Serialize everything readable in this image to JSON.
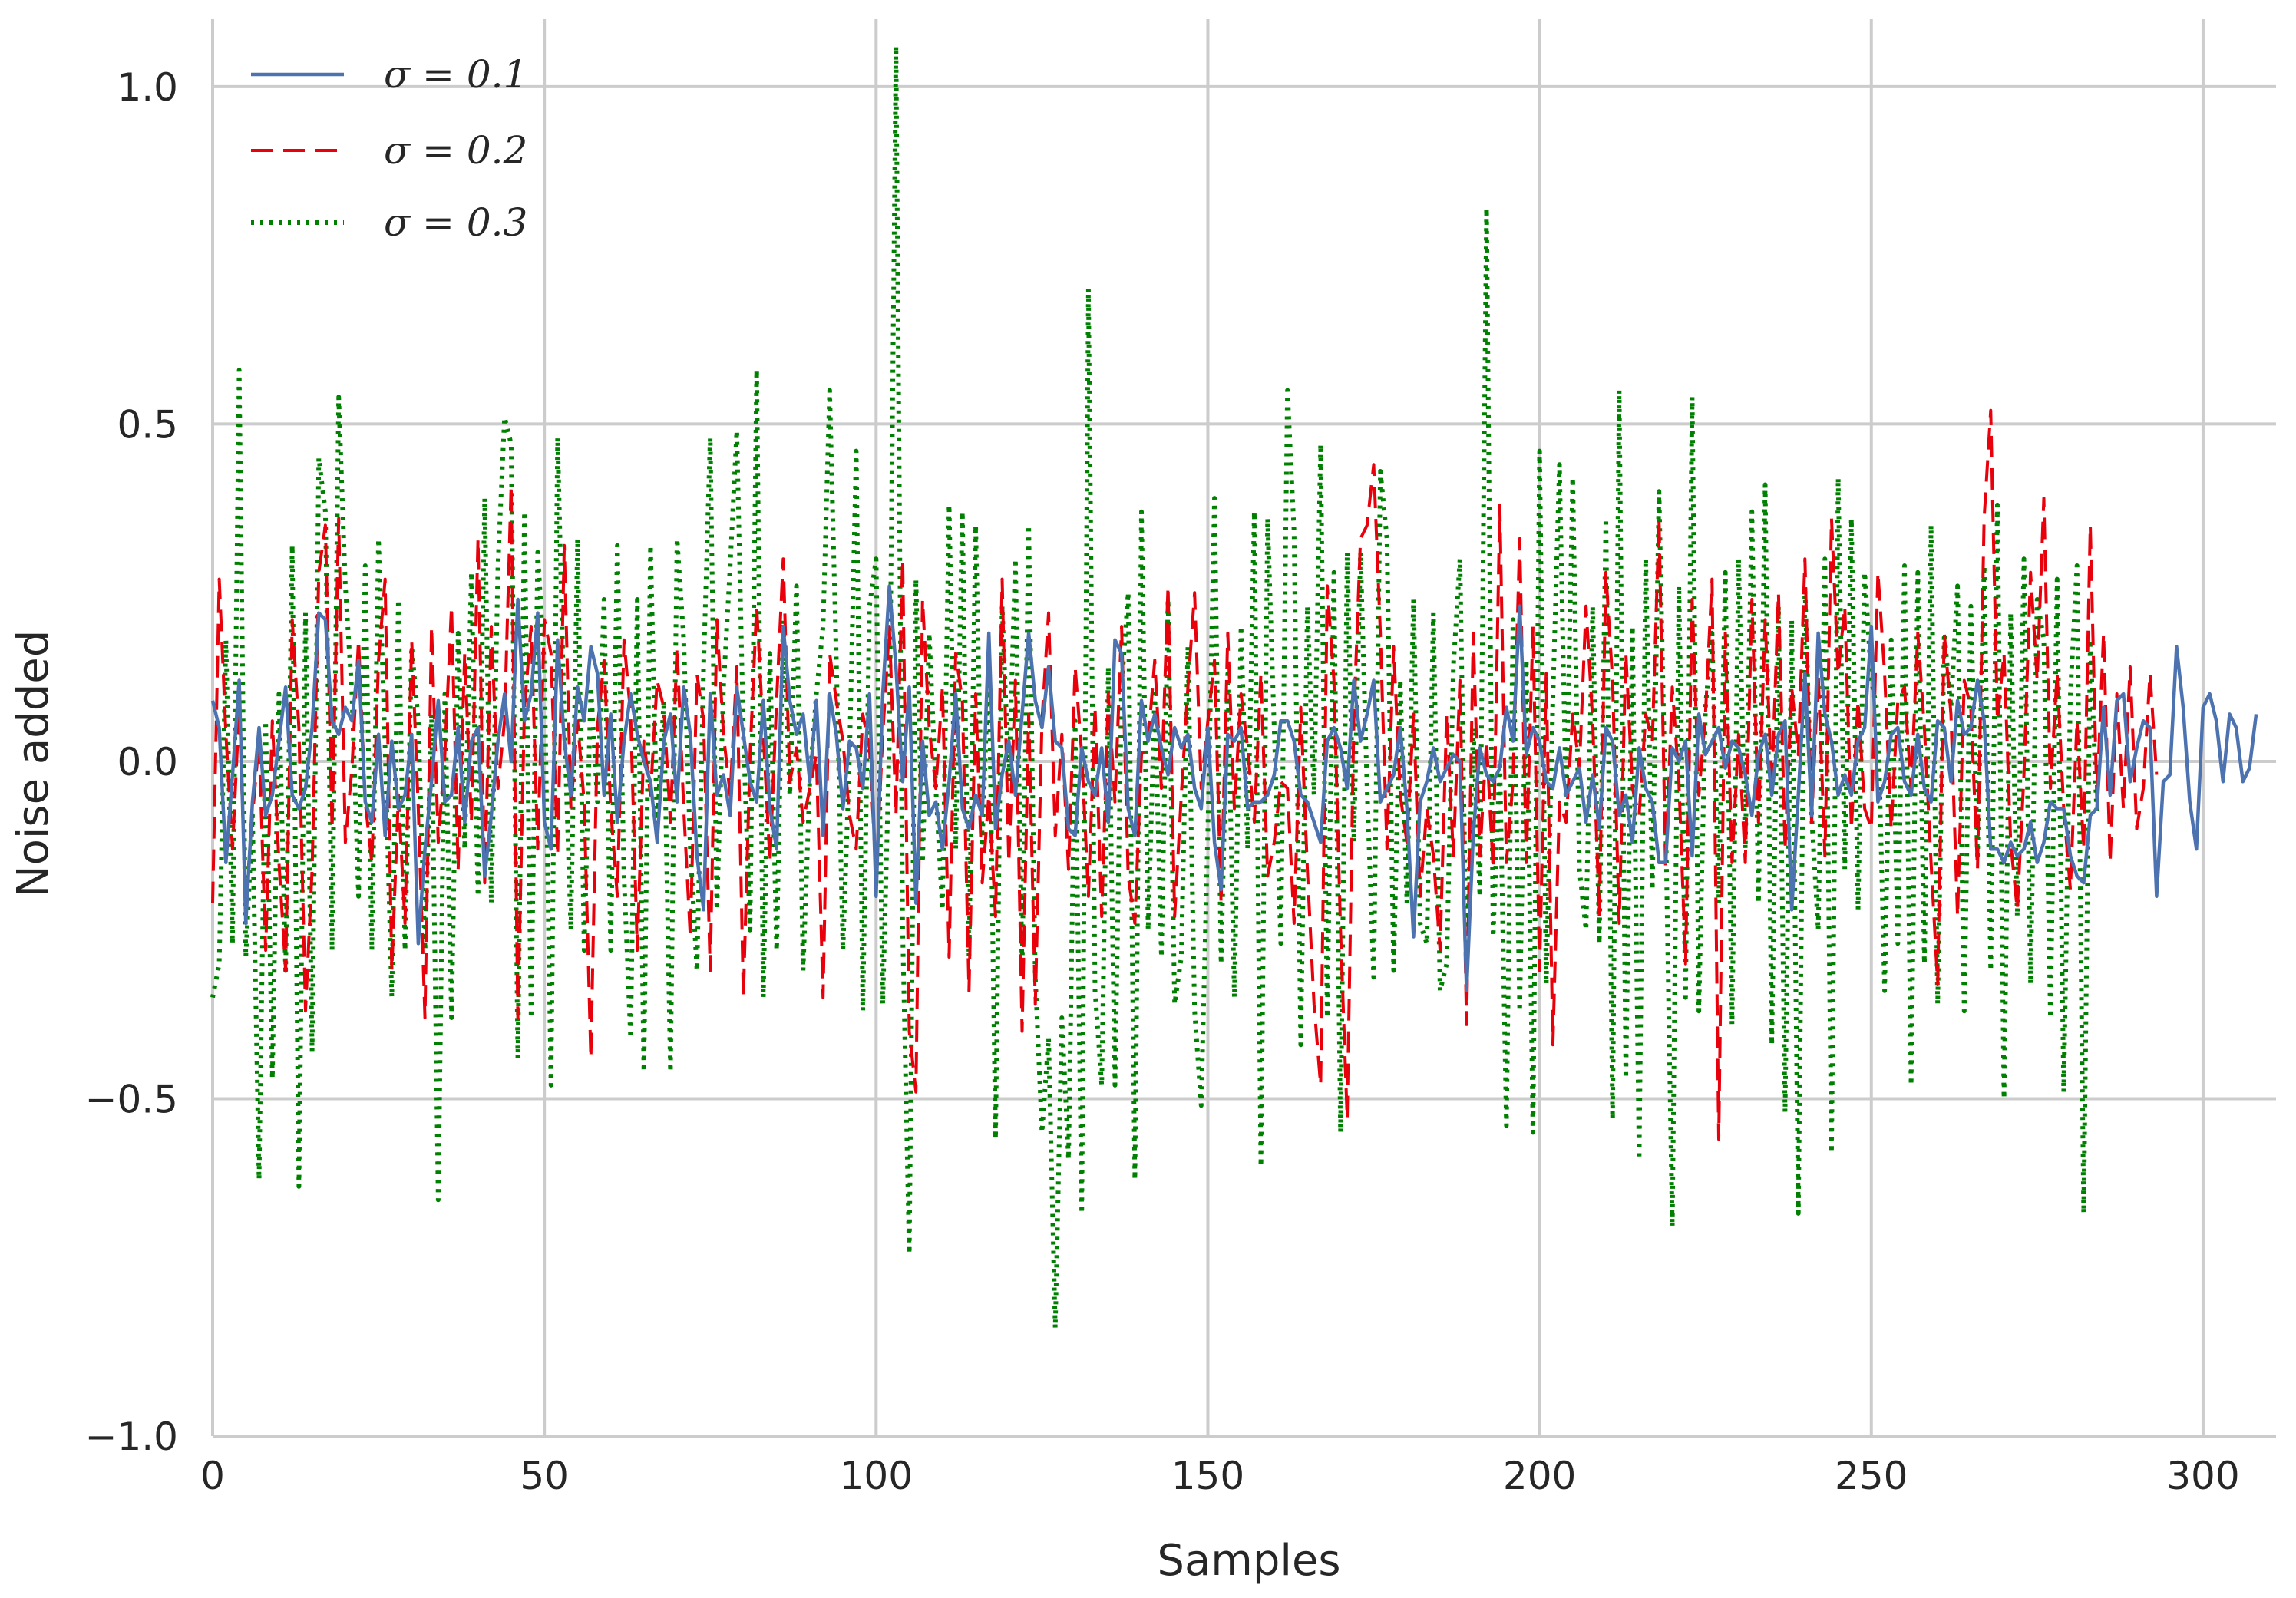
{
  "chart_data": {
    "type": "line",
    "title": "",
    "xlabel": "Samples",
    "ylabel": "Noise added",
    "xlim": [
      0,
      311
    ],
    "ylim": [
      -1.0,
      1.1
    ],
    "xticks": [
      0,
      50,
      100,
      150,
      200,
      250,
      300
    ],
    "xtick_labels": [
      "0",
      "50",
      "100",
      "150",
      "200",
      "250",
      "300"
    ],
    "yticks": [
      -1.0,
      -0.5,
      0.0,
      0.5,
      1.0
    ],
    "ytick_labels": [
      "−1.0",
      "−0.5",
      "0.0",
      "0.5",
      "1.0"
    ],
    "grid": true,
    "legend_position": "top-left",
    "series": [
      {
        "name": "σ = 0.1",
        "color": "#4c72b0",
        "style": "solid",
        "values": [
          0.09,
          0.05,
          -0.15,
          -0.02,
          0.12,
          -0.24,
          -0.06,
          0.05,
          -0.08,
          -0.05,
          0.03,
          0.11,
          -0.05,
          -0.07,
          -0.04,
          0.05,
          0.22,
          0.21,
          0.06,
          0.04,
          0.08,
          0.06,
          0.15,
          -0.06,
          -0.09,
          0.04,
          -0.11,
          0.03,
          -0.07,
          -0.05,
          0.04,
          -0.27,
          -0.13,
          -0.03,
          0.09,
          -0.06,
          -0.05,
          0.05,
          -0.09,
          0.03,
          0.05,
          -0.17,
          -0.08,
          0.03,
          0.1,
          0.0,
          0.24,
          0.06,
          0.1,
          0.22,
          -0.09,
          -0.13,
          0.18,
          0.03,
          -0.05,
          0.11,
          0.06,
          0.17,
          0.13,
          -0.05,
          0.07,
          -0.09,
          0.03,
          0.1,
          0.04,
          0.0,
          -0.03,
          -0.12,
          0.03,
          0.07,
          -0.06,
          0.11,
          0.04,
          -0.14,
          -0.22,
          0.1,
          -0.05,
          -0.02,
          -0.08,
          0.11,
          0.04,
          -0.03,
          -0.06,
          0.09,
          -0.07,
          -0.13,
          0.2,
          0.09,
          0.04,
          0.07,
          -0.03,
          0.09,
          -0.11,
          0.1,
          0.04,
          -0.07,
          0.03,
          0.02,
          -0.04,
          0.1,
          -0.2,
          0.1,
          0.26,
          0.14,
          -0.03,
          0.11,
          -0.21,
          0.03,
          -0.08,
          -0.06,
          -0.13,
          -0.03,
          0.1,
          -0.07,
          -0.1,
          -0.05,
          -0.08,
          0.19,
          -0.1,
          -0.02,
          0.03,
          -0.05,
          0.07,
          0.19,
          0.09,
          0.05,
          0.14,
          0.03,
          0.02,
          -0.1,
          -0.11,
          0.02,
          -0.03,
          -0.05,
          0.02,
          -0.09,
          0.18,
          0.16,
          -0.07,
          -0.11,
          0.09,
          0.03,
          0.07,
          0.02,
          -0.02,
          0.05,
          0.02,
          0.04,
          -0.04,
          -0.07,
          0.05,
          -0.12,
          -0.19,
          0.04,
          0.03,
          0.05,
          -0.07,
          -0.06,
          -0.06,
          -0.05,
          -0.02,
          0.06,
          0.06,
          0.03,
          -0.05,
          -0.06,
          -0.09,
          -0.12,
          0.03,
          0.05,
          0.02,
          -0.04,
          0.12,
          0.03,
          0.07,
          0.12,
          -0.06,
          -0.04,
          -0.02,
          0.05,
          -0.07,
          -0.26,
          -0.06,
          -0.03,
          0.02,
          -0.03,
          -0.01,
          0.01,
          0.0,
          -0.34,
          -0.11,
          0.02,
          -0.02,
          -0.03,
          -0.01,
          0.08,
          0.03,
          0.23,
          0.01,
          0.05,
          0.03,
          -0.03,
          -0.04,
          0.02,
          -0.05,
          -0.03,
          -0.01,
          -0.09,
          -0.02,
          -0.1,
          0.05,
          0.03,
          -0.08,
          -0.05,
          -0.12,
          0.02,
          -0.04,
          -0.06,
          -0.15,
          -0.15,
          0.02,
          0.0,
          0.03,
          -0.14,
          0.07,
          0.01,
          0.03,
          0.05,
          -0.01,
          0.03,
          0.02,
          -0.02,
          -0.08,
          0.01,
          0.04,
          -0.05,
          0.04,
          0.06,
          -0.22,
          -0.05,
          0.13,
          -0.08,
          0.19,
          0.07,
          0.03,
          -0.05,
          -0.02,
          -0.05,
          0.03,
          0.05,
          0.2,
          -0.06,
          -0.03,
          0.04,
          0.05,
          -0.03,
          -0.05,
          0.04,
          -0.04,
          -0.06,
          0.06,
          0.05,
          -0.03,
          0.09,
          0.04,
          0.05,
          0.12,
          0.06,
          -0.13,
          -0.13,
          -0.15,
          -0.12,
          -0.14,
          -0.13,
          -0.09,
          -0.15,
          -0.12,
          -0.06,
          -0.07,
          -0.07,
          -0.14,
          -0.17,
          -0.18,
          -0.08,
          -0.07,
          0.08,
          -0.05,
          0.09,
          0.1,
          -0.03,
          0.02,
          0.06,
          0.05,
          -0.2,
          -0.03,
          -0.02,
          0.17,
          0.08,
          -0.06,
          -0.13,
          0.08,
          0.1,
          0.06,
          -0.03,
          0.07,
          0.05,
          -0.03,
          -0.01,
          0.07
        ]
      },
      {
        "name": "σ = 0.2",
        "color": "#e8000b",
        "style": "dashed",
        "values": [
          -0.21,
          0.27,
          0.04,
          -0.13,
          0.08,
          -0.21,
          -0.08,
          0.03,
          -0.28,
          0.06,
          -0.15,
          -0.31,
          0.21,
          0.05,
          -0.37,
          -0.16,
          0.28,
          0.35,
          -0.1,
          0.36,
          -0.12,
          -0.01,
          0.18,
          -0.06,
          -0.15,
          0.15,
          0.27,
          -0.31,
          -0.05,
          -0.24,
          0.18,
          -0.07,
          -0.38,
          0.2,
          -0.12,
          0.01,
          0.23,
          -0.16,
          0.16,
          -0.09,
          0.33,
          -0.18,
          0.2,
          -0.04,
          0.06,
          0.41,
          -0.38,
          0.08,
          0.2,
          -0.13,
          0.21,
          0.16,
          -0.14,
          0.32,
          -0.07,
          0.06,
          -0.06,
          -0.44,
          0.05,
          0.15,
          -0.07,
          -0.2,
          0.18,
          0.07,
          -0.28,
          0.03,
          -0.05,
          0.12,
          0.08,
          -0.09,
          0.17,
          -0.07,
          -0.26,
          0.13,
          0.06,
          -0.31,
          0.21,
          0.04,
          -0.05,
          0.14,
          -0.35,
          0.01,
          0.23,
          0.04,
          -0.15,
          0.09,
          0.3,
          -0.03,
          0.02,
          -0.09,
          -0.04,
          0.01,
          -0.35,
          0.16,
          0.09,
          0.03,
          -0.08,
          -0.13,
          0.07,
          0.02,
          -0.17,
          0.04,
          0.2,
          -0.08,
          0.3,
          -0.4,
          -0.49,
          0.24,
          0.05,
          -0.04,
          0.11,
          -0.29,
          0.16,
          0.09,
          -0.34,
          0.1,
          -0.18,
          -0.05,
          -0.23,
          0.27,
          -0.15,
          0.12,
          -0.4,
          0.07,
          -0.36,
          0.06,
          0.22,
          -0.11,
          0.04,
          -0.16,
          0.14,
          0.01,
          -0.2,
          0.08,
          -0.23,
          0.1,
          -0.06,
          0.2,
          -0.17,
          -0.24,
          0.01,
          0.03,
          0.15,
          -0.04,
          0.26,
          -0.23,
          -0.05,
          0.11,
          0.25,
          -0.04,
          0.06,
          0.15,
          -0.21,
          0.19,
          -0.07,
          0.1,
          0.02,
          -0.09,
          0.13,
          -0.17,
          -0.12,
          -0.03,
          -0.04,
          -0.24,
          0.08,
          -0.16,
          -0.36,
          -0.48,
          0.26,
          0.12,
          -0.25,
          -0.53,
          0.06,
          0.33,
          0.35,
          0.44,
          0.19,
          -0.13,
          0.17,
          -0.05,
          -0.12,
          0.07,
          -0.2,
          -0.07,
          -0.14,
          -0.28,
          0.07,
          -0.14,
          0.12,
          -0.39,
          0.19,
          -0.14,
          0.03,
          -0.16,
          0.38,
          -0.15,
          -0.03,
          0.33,
          -0.15,
          0.2,
          -0.31,
          0.13,
          -0.42,
          -0.06,
          -0.09,
          0.07,
          -0.01,
          0.23,
          0.06,
          -0.23,
          0.28,
          0.12,
          -0.24,
          0.16,
          -0.04,
          -0.08,
          0.07,
          0.03,
          0.36,
          -0.16,
          0.11,
          -0.03,
          -0.3,
          0.24,
          -0.05,
          0.07,
          0.27,
          -0.56,
          0.19,
          -0.15,
          0.04,
          -0.15,
          0.24,
          -0.09,
          0.21,
          -0.04,
          0.25,
          -0.13,
          0.11,
          0.01,
          0.3,
          -0.09,
          0.13,
          -0.14,
          0.36,
          0.13,
          0.23,
          -0.1,
          0.09,
          -0.07,
          -0.1,
          0.28,
          0.13,
          -0.1,
          0.09,
          0.11,
          -0.04,
          0.19,
          0.05,
          -0.15,
          -0.33,
          0.19,
          0.07,
          -0.23,
          0.12,
          0.08,
          -0.16,
          0.36,
          0.52,
          0.06,
          0.16,
          -0.12,
          -0.22,
          -0.02,
          0.28,
          0.12,
          0.39,
          -0.04,
          0.13,
          -0.07,
          -0.19,
          0.06,
          -0.13,
          0.35,
          -0.06,
          0.19,
          -0.15,
          0.1,
          -0.07,
          0.14,
          -0.1,
          -0.04,
          0.13,
          -0.02
        ]
      },
      {
        "name": "σ = 0.3",
        "color": "#008000",
        "style": "dotted",
        "values": [
          -0.35,
          -0.3,
          0.18,
          -0.27,
          0.58,
          -0.29,
          -0.08,
          -0.62,
          0.06,
          -0.47,
          0.1,
          -0.31,
          0.32,
          -0.63,
          0.22,
          -0.43,
          0.45,
          0.37,
          -0.28,
          0.54,
          0.26,
          0.1,
          -0.2,
          0.29,
          -0.28,
          0.33,
          0.02,
          -0.35,
          0.24,
          -0.28,
          0.17,
          0.06,
          -0.28,
          0.07,
          -0.65,
          0.1,
          -0.38,
          0.19,
          -0.13,
          0.28,
          -0.2,
          0.39,
          -0.21,
          0.29,
          0.51,
          0.47,
          -0.44,
          0.37,
          -0.38,
          0.31,
          0.14,
          -0.48,
          0.48,
          0.06,
          -0.25,
          0.33,
          -0.28,
          0.11,
          -0.06,
          0.24,
          -0.28,
          0.32,
          -0.17,
          -0.41,
          0.24,
          -0.46,
          0.32,
          -0.1,
          0.09,
          -0.46,
          0.33,
          0.18,
          -0.13,
          -0.31,
          0.14,
          0.48,
          -0.22,
          0.11,
          0.29,
          0.49,
          0.04,
          -0.25,
          0.58,
          -0.35,
          0.16,
          -0.28,
          0.21,
          -0.05,
          0.26,
          -0.31,
          -0.03,
          0.1,
          0.2,
          0.55,
          0.15,
          -0.28,
          0.01,
          0.46,
          -0.37,
          0.23,
          0.3,
          -0.36,
          0.03,
          1.06,
          -0.25,
          -0.73,
          0.27,
          -0.15,
          0.19,
          -0.04,
          -0.22,
          0.38,
          -0.13,
          0.37,
          -0.29,
          0.35,
          -0.12,
          0.16,
          -0.56,
          0.23,
          -0.03,
          0.3,
          -0.31,
          0.35,
          -0.32,
          -0.55,
          -0.41,
          -0.84,
          -0.38,
          -0.59,
          0.06,
          -0.67,
          0.7,
          -0.34,
          -0.48,
          0.14,
          -0.48,
          0.11,
          0.25,
          -0.62,
          0.37,
          -0.25,
          0.1,
          -0.29,
          0.24,
          -0.36,
          -0.29,
          0.17,
          -0.37,
          -0.51,
          -0.1,
          0.39,
          -0.3,
          0.13,
          -0.35,
          0.2,
          -0.13,
          0.37,
          -0.6,
          0.36,
          0.05,
          -0.27,
          0.55,
          0.34,
          -0.42,
          0.23,
          -0.05,
          0.47,
          -0.38,
          0.28,
          -0.55,
          0.31,
          -0.12,
          0.31,
          -0.04,
          -0.32,
          0.43,
          0.33,
          -0.31,
          0.12,
          -0.21,
          0.24,
          -0.24,
          -0.27,
          0.22,
          -0.34,
          -0.3,
          0.14,
          0.3,
          -0.31,
          0.05,
          -0.2,
          0.82,
          -0.26,
          0.0,
          -0.54,
          0.21,
          -0.37,
          0.15,
          -0.55,
          0.46,
          -0.33,
          0.09,
          0.44,
          -0.07,
          0.42,
          -0.16,
          -0.25,
          0.23,
          -0.27,
          0.36,
          -0.53,
          0.55,
          -0.47,
          0.2,
          -0.59,
          0.3,
          -0.19,
          0.4,
          -0.08,
          -0.69,
          0.26,
          -0.35,
          0.54,
          -0.37,
          0.08,
          0.19,
          -0.21,
          0.28,
          -0.39,
          0.3,
          -0.13,
          0.37,
          -0.21,
          0.41,
          -0.42,
          0.23,
          -0.52,
          0.21,
          -0.67,
          0.26,
          -0.08,
          -0.25,
          0.3,
          -0.58,
          0.42,
          -0.16,
          0.36,
          -0.22,
          0.28,
          0.12,
          0.07,
          -0.34,
          0.18,
          -0.27,
          0.29,
          -0.48,
          0.28,
          -0.3,
          0.35,
          -0.36,
          0.19,
          0.08,
          0.26,
          -0.37,
          0.23,
          -0.14,
          0.29,
          -0.31,
          0.38,
          -0.5,
          0.22,
          -0.23,
          0.3,
          -0.33,
          0.24,
          0.18,
          -0.38,
          0.27,
          -0.49,
          0.1,
          0.29,
          -0.67,
          0.18,
          -0.08
        ]
      }
    ]
  }
}
